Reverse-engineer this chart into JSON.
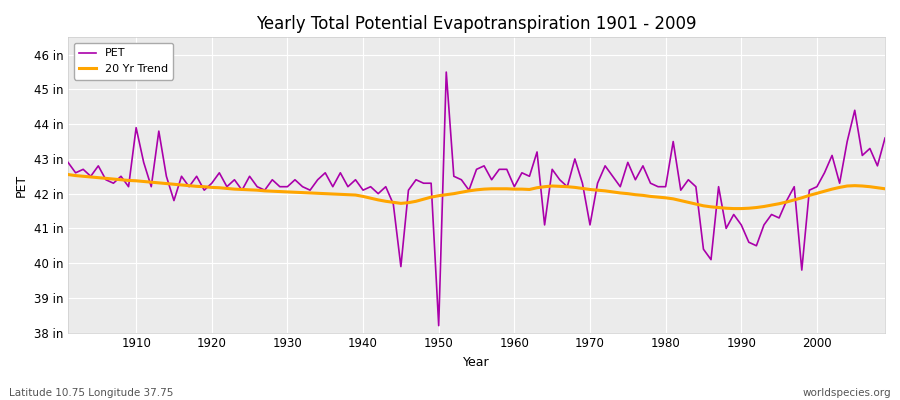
{
  "title": "Yearly Total Potential Evapotranspiration 1901 - 2009",
  "ylabel": "PET",
  "xlabel": "Year",
  "bottom_left_label": "Latitude 10.75 Longitude 37.75",
  "bottom_right_label": "worldspecies.org",
  "pet_color": "#AA00AA",
  "trend_color": "#FFA500",
  "bg_color": "#F0F0F0",
  "plot_bg_color": "#E8E8E8",
  "grid_color": "#FFFFFF",
  "ylim_min": 38,
  "ylim_max": 46.5,
  "years": [
    1901,
    1902,
    1903,
    1904,
    1905,
    1906,
    1907,
    1908,
    1909,
    1910,
    1911,
    1912,
    1913,
    1914,
    1915,
    1916,
    1917,
    1918,
    1919,
    1920,
    1921,
    1922,
    1923,
    1924,
    1925,
    1926,
    1927,
    1928,
    1929,
    1930,
    1931,
    1932,
    1933,
    1934,
    1935,
    1936,
    1937,
    1938,
    1939,
    1940,
    1941,
    1942,
    1943,
    1944,
    1945,
    1946,
    1947,
    1948,
    1949,
    1950,
    1951,
    1952,
    1953,
    1954,
    1955,
    1956,
    1957,
    1958,
    1959,
    1960,
    1961,
    1962,
    1963,
    1964,
    1965,
    1966,
    1967,
    1968,
    1969,
    1970,
    1971,
    1972,
    1973,
    1974,
    1975,
    1976,
    1977,
    1978,
    1979,
    1980,
    1981,
    1982,
    1983,
    1984,
    1985,
    1986,
    1987,
    1988,
    1989,
    1990,
    1991,
    1992,
    1993,
    1994,
    1995,
    1996,
    1997,
    1998,
    1999,
    2000,
    2001,
    2002,
    2003,
    2004,
    2005,
    2006,
    2007,
    2008,
    2009
  ],
  "pet_values": [
    42.9,
    42.6,
    42.7,
    42.5,
    42.8,
    42.4,
    42.3,
    42.5,
    42.2,
    43.9,
    42.9,
    42.2,
    43.8,
    42.5,
    41.8,
    42.5,
    42.2,
    42.5,
    42.1,
    42.3,
    42.6,
    42.2,
    42.4,
    42.1,
    42.5,
    42.2,
    42.1,
    42.4,
    42.2,
    42.2,
    42.4,
    42.2,
    42.1,
    42.4,
    42.6,
    42.2,
    42.6,
    42.2,
    42.4,
    42.1,
    42.2,
    42.0,
    42.2,
    41.7,
    39.9,
    42.1,
    42.4,
    42.3,
    42.3,
    38.2,
    45.5,
    42.5,
    42.4,
    42.1,
    42.7,
    42.8,
    42.4,
    42.7,
    42.7,
    42.2,
    42.6,
    42.5,
    43.2,
    41.1,
    42.7,
    42.4,
    42.2,
    43.0,
    42.3,
    41.1,
    42.3,
    42.8,
    42.5,
    42.2,
    42.9,
    42.4,
    42.8,
    42.3,
    42.2,
    42.2,
    43.5,
    42.1,
    42.4,
    42.2,
    40.4,
    40.1,
    42.2,
    41.0,
    41.4,
    41.1,
    40.6,
    40.5,
    41.1,
    41.4,
    41.3,
    41.8,
    42.2,
    39.8,
    42.1,
    42.2,
    42.6,
    43.1,
    42.3,
    43.5,
    44.4,
    43.1,
    43.3,
    42.8,
    43.6
  ],
  "trend_values": [
    42.55,
    42.52,
    42.5,
    42.48,
    42.46,
    42.44,
    42.42,
    42.4,
    42.38,
    42.37,
    42.35,
    42.33,
    42.31,
    42.29,
    42.27,
    42.25,
    42.23,
    42.21,
    42.2,
    42.18,
    42.17,
    42.15,
    42.13,
    42.12,
    42.11,
    42.1,
    42.08,
    42.07,
    42.06,
    42.05,
    42.04,
    42.03,
    42.02,
    42.01,
    42.0,
    41.99,
    41.98,
    41.97,
    41.96,
    41.92,
    41.87,
    41.82,
    41.78,
    41.75,
    41.72,
    41.74,
    41.78,
    41.84,
    41.9,
    41.94,
    41.97,
    42.0,
    42.04,
    42.08,
    42.11,
    42.13,
    42.14,
    42.14,
    42.14,
    42.13,
    42.13,
    42.12,
    42.17,
    42.2,
    42.22,
    42.21,
    42.2,
    42.18,
    42.15,
    42.12,
    42.1,
    42.08,
    42.05,
    42.02,
    42.0,
    41.97,
    41.95,
    41.92,
    41.9,
    41.88,
    41.85,
    41.8,
    41.75,
    41.7,
    41.65,
    41.62,
    41.6,
    41.58,
    41.57,
    41.57,
    41.58,
    41.6,
    41.63,
    41.67,
    41.71,
    41.76,
    41.82,
    41.88,
    41.95,
    42.01,
    42.07,
    42.13,
    42.18,
    42.22,
    42.23,
    42.22,
    42.2,
    42.17,
    42.14
  ]
}
